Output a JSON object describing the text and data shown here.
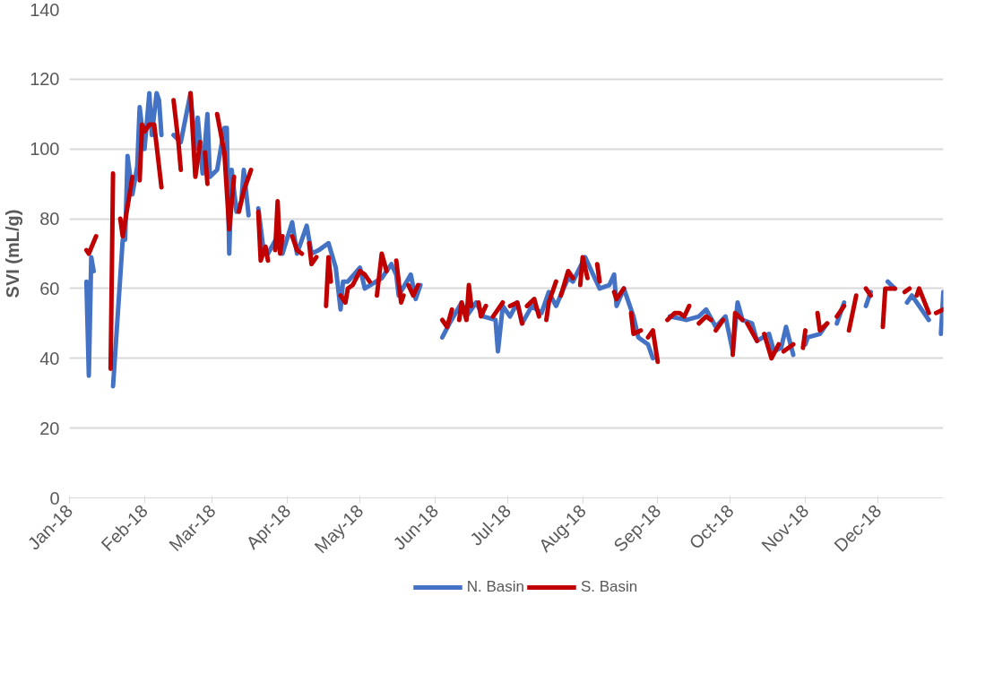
{
  "chart_data": {
    "type": "line",
    "ylabel": "SVI (mL/g)",
    "xlim": [
      "2018-01-01",
      "2018-12-28"
    ],
    "xticks": [
      {
        "value": "2018-01-01",
        "label": "Jan-18"
      },
      {
        "value": "2018-02-01",
        "label": "Feb-18"
      },
      {
        "value": "2018-03-01",
        "label": "Mar-18"
      },
      {
        "value": "2018-04-01",
        "label": "Apr-18"
      },
      {
        "value": "2018-05-01",
        "label": "May-18"
      },
      {
        "value": "2018-06-01",
        "label": "Jun-18"
      },
      {
        "value": "2018-07-01",
        "label": "Jul-18"
      },
      {
        "value": "2018-08-01",
        "label": "Aug-18"
      },
      {
        "value": "2018-09-01",
        "label": "Sep-18"
      },
      {
        "value": "2018-10-01",
        "label": "Oct-18"
      },
      {
        "value": "2018-11-01",
        "label": "Nov-18"
      },
      {
        "value": "2018-12-01",
        "label": "Dec-18"
      }
    ],
    "ylim": [
      0,
      140
    ],
    "yticks": [
      0,
      20,
      40,
      60,
      80,
      100,
      120,
      140
    ],
    "grid": "y",
    "legend": "bottom",
    "line_style": "solid",
    "marker": "none",
    "series": [
      {
        "name": "N. Basin",
        "color": "#4472c4",
        "x": [
          "2018-01-08",
          "2018-01-09",
          "2018-01-10",
          "2018-01-11",
          "2018-01-14",
          "2018-01-19",
          "2018-01-23",
          "2018-01-24",
          "2018-01-25",
          "2018-01-27",
          "2018-01-29",
          "2018-01-30",
          "2018-02-01",
          "2018-02-03",
          "2018-02-04",
          "2018-02-06",
          "2018-02-07",
          "2018-02-08",
          "2018-02-10",
          "2018-02-13",
          "2018-02-16",
          "2018-02-20",
          "2018-02-22",
          "2018-02-23",
          "2018-02-25",
          "2018-02-27",
          "2018-02-28",
          "2018-03-03",
          "2018-03-06",
          "2018-03-07",
          "2018-03-08",
          "2018-03-09",
          "2018-03-11",
          "2018-03-13",
          "2018-03-14",
          "2018-03-16",
          "2018-03-18",
          "2018-03-20",
          "2018-03-22",
          "2018-03-24",
          "2018-03-28",
          "2018-03-30",
          "2018-04-03",
          "2018-04-05",
          "2018-04-09",
          "2018-04-11",
          "2018-04-14",
          "2018-04-18",
          "2018-04-21",
          "2018-04-23",
          "2018-04-24",
          "2018-04-26",
          "2018-05-01",
          "2018-05-03",
          "2018-05-10",
          "2018-05-14",
          "2018-05-16",
          "2018-05-17",
          "2018-05-22",
          "2018-05-24",
          "2018-05-26",
          "2018-05-29",
          "2018-06-04",
          "2018-06-07",
          "2018-06-12",
          "2018-06-14",
          "2018-06-18",
          "2018-06-21",
          "2018-06-26",
          "2018-06-27",
          "2018-06-29",
          "2018-07-02",
          "2018-07-05",
          "2018-07-07",
          "2018-07-11",
          "2018-07-15",
          "2018-07-18",
          "2018-07-21",
          "2018-07-26",
          "2018-07-28",
          "2018-08-02",
          "2018-08-08",
          "2018-08-12",
          "2018-08-14",
          "2018-08-15",
          "2018-08-18",
          "2018-08-22",
          "2018-08-24",
          "2018-08-28",
          "2018-08-30",
          "2018-09-02",
          "2018-09-06",
          "2018-09-13",
          "2018-09-18",
          "2018-09-21",
          "2018-09-25",
          "2018-09-29",
          "2018-10-02",
          "2018-10-04",
          "2018-10-06",
          "2018-10-10",
          "2018-10-12",
          "2018-10-17",
          "2018-10-19",
          "2018-10-22",
          "2018-10-24",
          "2018-10-27",
          "2018-10-29",
          "2018-11-01",
          "2018-11-02",
          "2018-11-07",
          "2018-11-10",
          "2018-11-12",
          "2018-11-14",
          "2018-11-17",
          "2018-11-22",
          "2018-11-26",
          "2018-11-28",
          "2018-12-01",
          "2018-12-05",
          "2018-12-08",
          "2018-12-10",
          "2018-12-13",
          "2018-12-15",
          "2018-12-18",
          "2018-12-22",
          "2018-12-24",
          "2018-12-27",
          "2018-12-28"
        ],
        "values": [
          62,
          35,
          69,
          65,
          null,
          32,
          74,
          74,
          98,
          87,
          95,
          112,
          100,
          116,
          104,
          116,
          114,
          104,
          null,
          104,
          102,
          116,
          100,
          109,
          93,
          110,
          92,
          94,
          106,
          106,
          70,
          94,
          82,
          85,
          94,
          81,
          null,
          83,
          72,
          70,
          75,
          70,
          79,
          70,
          78,
          70,
          71,
          73,
          66,
          54,
          62,
          62,
          66,
          60,
          63,
          67,
          64,
          58,
          64,
          57,
          61,
          null,
          46,
          50,
          56,
          52,
          56,
          52,
          51,
          42,
          55,
          52,
          56,
          50,
          55,
          53,
          59,
          55,
          63,
          62,
          69,
          60,
          61,
          64,
          55,
          60,
          52,
          46,
          44,
          40,
          null,
          52,
          51,
          52,
          54,
          49,
          52,
          42,
          56,
          51,
          50,
          45,
          47,
          42,
          43,
          49,
          41,
          null,
          44,
          46,
          47,
          50,
          null,
          50,
          56,
          null,
          55,
          59,
          null,
          62,
          60,
          null,
          56,
          58,
          55,
          51,
          null,
          47,
          59
        ]
      },
      {
        "name": "S. Basin",
        "color": "#c00000",
        "x": [
          "2018-01-08",
          "2018-01-09",
          "2018-01-12",
          "2018-01-14",
          "2018-01-18",
          "2018-01-19",
          "2018-01-20",
          "2018-01-22",
          "2018-01-23",
          "2018-01-27",
          "2018-01-28",
          "2018-01-30",
          "2018-01-31",
          "2018-02-01",
          "2018-02-03",
          "2018-02-05",
          "2018-02-08",
          "2018-02-10",
          "2018-02-13",
          "2018-02-15",
          "2018-02-16",
          "2018-02-18",
          "2018-02-20",
          "2018-02-22",
          "2018-02-24",
          "2018-02-25",
          "2018-02-26",
          "2018-02-27",
          "2018-03-01",
          "2018-03-03",
          "2018-03-06",
          "2018-03-08",
          "2018-03-10",
          "2018-03-11",
          "2018-03-12",
          "2018-03-14",
          "2018-03-17",
          "2018-03-18",
          "2018-03-20",
          "2018-03-21",
          "2018-03-23",
          "2018-03-24",
          "2018-03-25",
          "2018-03-27",
          "2018-03-28",
          "2018-03-29",
          "2018-03-30",
          "2018-04-01",
          "2018-04-03",
          "2018-04-05",
          "2018-04-07",
          "2018-04-08",
          "2018-04-10",
          "2018-04-11",
          "2018-04-13",
          "2018-04-15",
          "2018-04-17",
          "2018-04-18",
          "2018-04-19",
          "2018-04-21",
          "2018-04-23",
          "2018-04-25",
          "2018-04-26",
          "2018-04-28",
          "2018-05-01",
          "2018-05-03",
          "2018-05-05",
          "2018-05-06",
          "2018-05-08",
          "2018-05-10",
          "2018-05-12",
          "2018-05-14",
          "2018-05-16",
          "2018-05-18",
          "2018-05-19",
          "2018-05-20",
          "2018-05-21",
          "2018-05-23",
          "2018-05-25",
          "2018-05-29",
          "2018-06-04",
          "2018-06-06",
          "2018-06-08",
          "2018-06-09",
          "2018-06-11",
          "2018-06-12",
          "2018-06-14",
          "2018-06-15",
          "2018-06-16",
          "2018-06-17",
          "2018-06-19",
          "2018-06-20",
          "2018-06-22",
          "2018-06-23",
          "2018-06-25",
          "2018-06-29",
          "2018-06-30",
          "2018-07-02",
          "2018-07-05",
          "2018-07-07",
          "2018-07-08",
          "2018-07-09",
          "2018-07-12",
          "2018-07-14",
          "2018-07-16",
          "2018-07-17",
          "2018-07-18",
          "2018-07-19",
          "2018-07-21",
          "2018-07-22",
          "2018-07-23",
          "2018-07-26",
          "2018-07-28",
          "2018-07-29",
          "2018-07-31",
          "2018-08-01",
          "2018-08-03",
          "2018-08-05",
          "2018-08-07",
          "2018-08-08",
          "2018-08-10",
          "2018-08-14",
          "2018-08-15",
          "2018-08-18",
          "2018-08-19",
          "2018-08-21",
          "2018-08-22",
          "2018-08-25",
          "2018-08-26",
          "2018-08-28",
          "2018-08-30",
          "2018-09-01",
          "2018-09-02",
          "2018-09-05",
          "2018-09-08",
          "2018-09-10",
          "2018-09-12",
          "2018-09-14",
          "2018-09-16",
          "2018-09-18",
          "2018-09-21",
          "2018-09-23",
          "2018-09-24",
          "2018-09-25",
          "2018-09-28",
          "2018-09-30",
          "2018-10-02",
          "2018-10-03",
          "2018-10-06",
          "2018-10-07",
          "2018-10-08",
          "2018-10-12",
          "2018-10-13",
          "2018-10-15",
          "2018-10-18",
          "2018-10-21",
          "2018-10-22",
          "2018-10-23",
          "2018-10-27",
          "2018-10-29",
          "2018-10-31",
          "2018-11-01",
          "2018-11-03",
          "2018-11-06",
          "2018-11-07",
          "2018-11-10",
          "2018-11-12",
          "2018-11-14",
          "2018-11-17",
          "2018-11-18",
          "2018-11-19",
          "2018-11-22",
          "2018-11-24",
          "2018-11-26",
          "2018-11-28",
          "2018-11-30",
          "2018-12-03",
          "2018-12-04",
          "2018-12-08",
          "2018-12-10",
          "2018-12-12",
          "2018-12-14",
          "2018-12-15",
          "2018-12-17",
          "2018-12-18",
          "2018-12-22",
          "2018-12-24",
          "2018-12-25",
          "2018-12-28"
        ],
        "values": [
          71,
          70,
          75,
          null,
          37,
          93,
          null,
          80,
          75,
          92,
          null,
          91,
          107,
          105,
          107,
          107,
          89,
          null,
          114,
          102,
          94,
          null,
          116,
          92,
          102,
          null,
          99,
          90,
          null,
          110,
          99,
          77,
          92,
          null,
          82,
          88,
          94,
          null,
          82,
          68,
          72,
          68,
          null,
          71,
          85,
          70,
          75,
          null,
          75,
          71,
          70,
          null,
          73,
          67,
          69,
          null,
          55,
          69,
          62,
          null,
          58,
          56,
          60,
          61,
          65,
          64,
          62,
          null,
          58,
          70,
          65,
          null,
          68,
          56,
          58,
          null,
          61,
          58,
          61,
          null,
          51,
          49,
          54,
          null,
          51,
          56,
          51,
          61,
          55,
          null,
          56,
          52,
          55,
          null,
          52,
          56,
          null,
          55,
          56,
          50,
          null,
          55,
          57,
          52,
          null,
          51,
          56,
          58,
          62,
          null,
          58,
          65,
          63,
          null,
          61,
          69,
          63,
          null,
          67,
          62,
          null,
          59,
          57,
          60,
          null,
          53,
          47,
          48,
          null,
          46,
          48,
          39,
          null,
          51,
          53,
          53,
          52,
          55,
          null,
          50,
          52,
          51,
          null,
          48,
          51,
          null,
          41,
          53,
          51,
          null,
          50,
          45,
          null,
          47,
          40,
          44,
          null,
          42,
          44,
          null,
          43,
          48,
          null,
          53,
          48,
          50,
          null,
          52,
          55,
          null,
          48,
          58,
          null,
          60,
          58,
          null,
          49,
          60,
          60,
          null,
          59,
          60,
          null,
          58,
          60,
          53,
          null,
          53,
          54
        ]
      }
    ]
  }
}
